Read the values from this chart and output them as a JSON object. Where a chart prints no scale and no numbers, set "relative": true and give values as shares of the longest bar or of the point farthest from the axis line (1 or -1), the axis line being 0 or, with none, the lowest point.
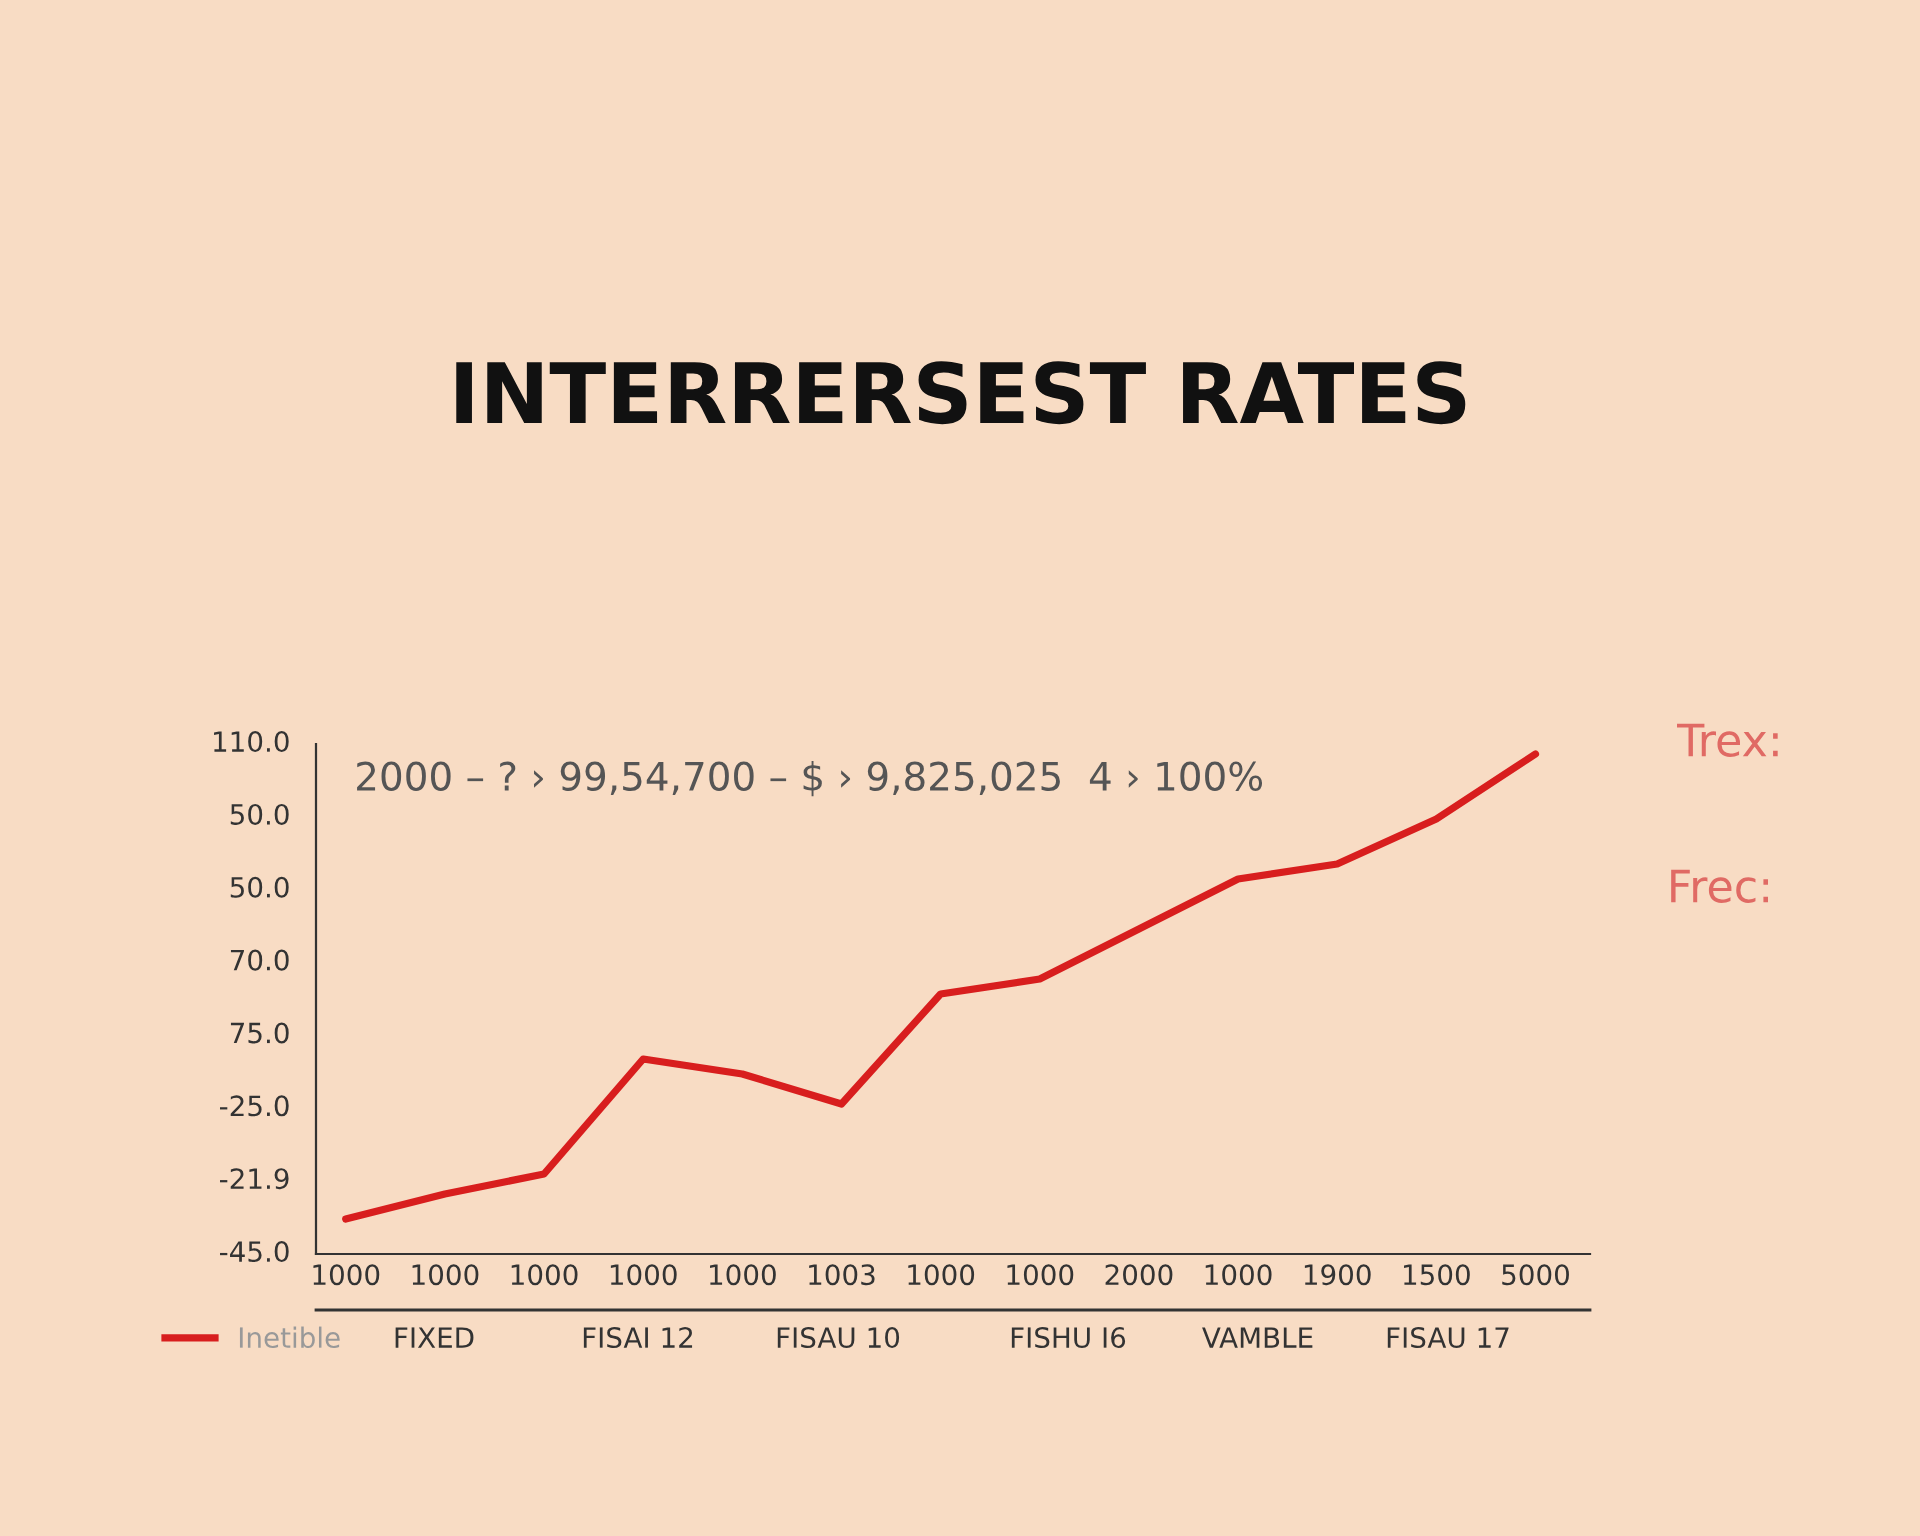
{
  "chart_data": {
    "type": "line",
    "title": "INTERRERSEST RATES",
    "relative": true,
    "categories": [
      "1000",
      "1000",
      "1000",
      "1000",
      "1000",
      "1003",
      "1000",
      "1000",
      "2000",
      "1000",
      "1900",
      "1500",
      "5000"
    ],
    "series": [
      {
        "name": "Inetible",
        "color": "#d81e1e",
        "values": [
          0.07,
          0.12,
          0.16,
          0.39,
          0.36,
          0.3,
          0.52,
          0.55,
          0.65,
          0.75,
          0.78,
          0.87,
          1.0
        ]
      }
    ],
    "legend": "bottom left",
    "marker": "none",
    "line_style": "solid",
    "annotations": [
      "2000 – ? › 99,54,700 – $ › 9,825,025  4 › 100%",
      "Trex:",
      "Frec:",
      "110.0",
      "50.0",
      "50.0",
      "70.0",
      "75.0",
      "-25.0",
      "-21.9",
      "-45.0",
      "FIXED",
      "FISAI 12",
      "FISAU 10",
      "FISHU I6",
      "VAMBLE",
      "FISAU 17"
    ]
  }
}
